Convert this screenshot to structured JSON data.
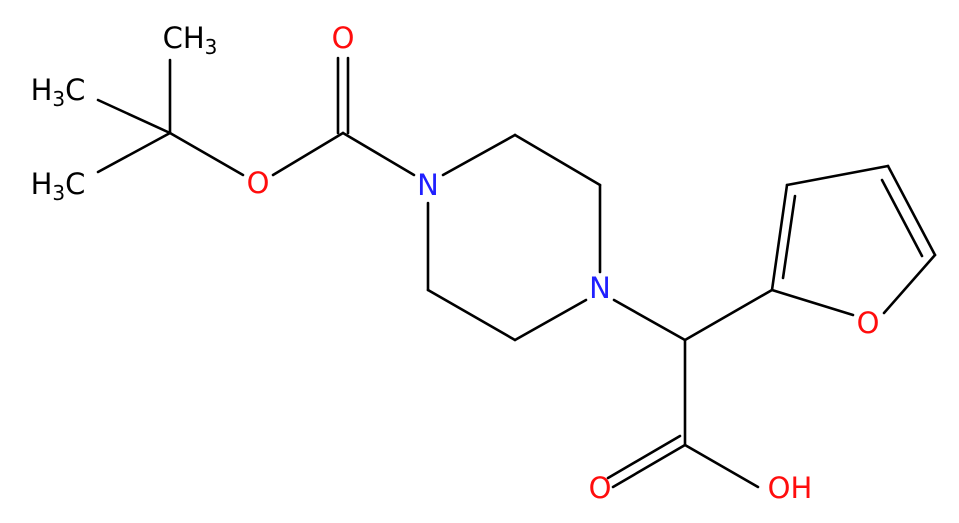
{
  "atoms": [
    {
      "label": [
        "CH",
        "3"
      ]
    },
    {
      "label": [
        "H",
        "3",
        "C"
      ]
    },
    {
      "label": [
        "H",
        "3",
        "C"
      ]
    },
    {
      "label": [
        "O"
      ]
    },
    {
      "label": [
        "O"
      ]
    },
    {
      "label": [
        "N"
      ]
    },
    {
      "label": [
        "N"
      ]
    },
    {
      "label": [
        "O"
      ]
    },
    {
      "label": [
        "O"
      ]
    },
    {
      "label": [
        "OH"
      ]
    }
  ]
}
